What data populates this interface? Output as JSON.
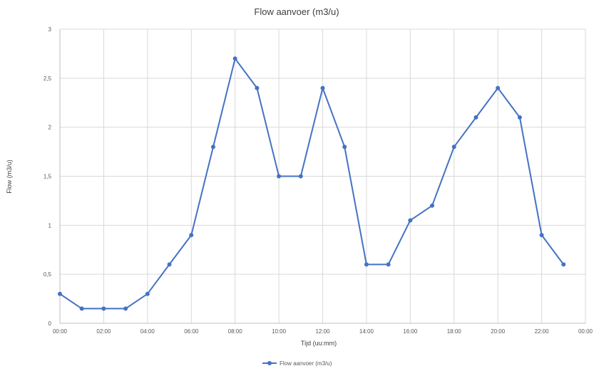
{
  "chart_data": {
    "type": "line",
    "title": "Flow aanvoer (m3/u)",
    "xlabel": "Tijd (uu:mm)",
    "ylabel": "Flow (m3/u)",
    "ylim": [
      0,
      3
    ],
    "y_ticks": [
      "0",
      "0,5",
      "1",
      "1,5",
      "2",
      "2,5",
      "3"
    ],
    "x_ticks": [
      "00:00",
      "02:00",
      "04:00",
      "06:00",
      "08:00",
      "10:00",
      "12:00",
      "14:00",
      "16:00",
      "18:00",
      "20:00",
      "22:00",
      "00:00"
    ],
    "grid": true,
    "legend_position": "bottom",
    "series": [
      {
        "name": "Flow aanvoer (m3/u)",
        "color": "#4472c4",
        "x": [
          "00:00",
          "01:00",
          "02:00",
          "03:00",
          "04:00",
          "05:00",
          "06:00",
          "07:00",
          "08:00",
          "09:00",
          "10:00",
          "11:00",
          "12:00",
          "13:00",
          "14:00",
          "15:00",
          "16:00",
          "17:00",
          "18:00",
          "19:00",
          "20:00",
          "21:00",
          "22:00",
          "23:00"
        ],
        "values": [
          0.3,
          0.15,
          0.15,
          0.15,
          0.3,
          0.6,
          0.9,
          1.8,
          2.7,
          2.4,
          1.5,
          1.5,
          2.4,
          1.8,
          0.6,
          0.6,
          1.05,
          1.2,
          1.8,
          2.1,
          2.4,
          2.1,
          0.9,
          0.6
        ]
      }
    ]
  }
}
